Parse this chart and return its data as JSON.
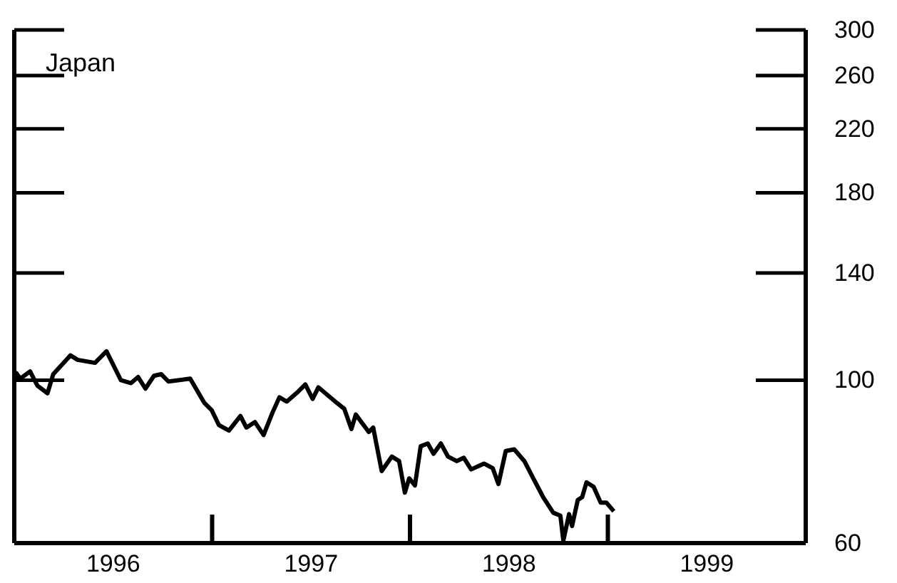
{
  "chart_data": {
    "type": "line",
    "title": "Japan",
    "log": true,
    "ylim": [
      60,
      300
    ],
    "yticks": [
      60,
      100,
      140,
      180,
      220,
      260,
      300
    ],
    "xlim": [
      1996,
      2000
    ],
    "xticks": [
      {
        "value": 1996.5,
        "label": "1996"
      },
      {
        "value": 1997.5,
        "label": "1997"
      },
      {
        "value": 1998.5,
        "label": "1998"
      },
      {
        "value": 1999.5,
        "label": "1999"
      }
    ],
    "series": [
      {
        "color": "#000000",
        "x": [
          1996.0,
          1996.01,
          1996.03,
          1996.08,
          1996.117,
          1996.168,
          1996.197,
          1996.284,
          1996.32,
          1996.408,
          1996.466,
          1996.539,
          1996.59,
          1996.626,
          1996.663,
          1996.706,
          1996.743,
          1996.779,
          1996.889,
          1996.961,
          1996.998,
          1997.034,
          1997.085,
          1997.143,
          1997.173,
          1997.216,
          1997.26,
          1997.304,
          1997.34,
          1997.377,
          1997.435,
          1997.471,
          1997.508,
          1997.537,
          1997.631,
          1997.668,
          1997.704,
          1997.726,
          1997.792,
          1997.814,
          1997.857,
          1997.908,
          1997.945,
          1997.974,
          1997.996,
          1998.025,
          1998.054,
          1998.09,
          1998.119,
          1998.156,
          1998.192,
          1998.236,
          1998.272,
          1998.309,
          1998.374,
          1998.418,
          1998.447,
          1998.484,
          1998.527,
          1998.578,
          1998.615,
          1998.673,
          1998.724,
          1998.76,
          1998.775,
          1998.804,
          1998.819,
          1998.848,
          1998.87,
          1998.892,
          1998.928,
          1998.964,
          1998.993,
          1999.03
        ],
        "values": [
          99.6,
          102.3,
          100.5,
          102.8,
          98.3,
          96.0,
          101.9,
          108.1,
          106.6,
          105.6,
          109.5,
          100.0,
          99.1,
          101.0,
          97.4,
          101.4,
          101.9,
          99.6,
          100.5,
          93.1,
          91.0,
          86.9,
          85.4,
          89.4,
          86.2,
          87.7,
          84.2,
          90.2,
          94.8,
          93.5,
          96.5,
          98.7,
          94.3,
          97.8,
          93.1,
          91.4,
          85.8,
          89.8,
          85.0,
          86.2,
          75.2,
          78.7,
          77.6,
          70.3,
          73.5,
          71.9,
          81.3,
          82.0,
          79.4,
          82.0,
          78.7,
          77.6,
          78.4,
          75.6,
          77.0,
          75.9,
          72.2,
          80.1,
          80.5,
          77.6,
          74.2,
          69.3,
          66.0,
          65.4,
          60.5,
          65.7,
          63.3,
          68.7,
          69.3,
          72.6,
          71.6,
          68.1,
          68.1,
          66.3
        ]
      }
    ]
  }
}
